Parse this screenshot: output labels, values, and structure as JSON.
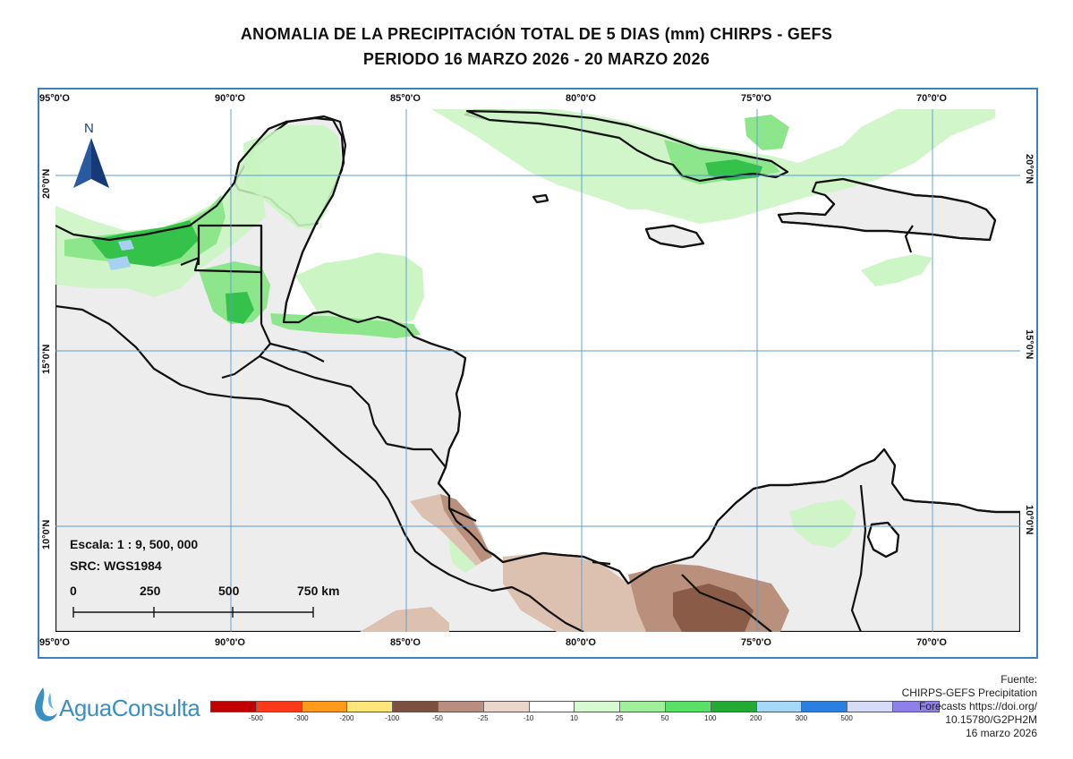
{
  "title_line1": "ANOMALIA DE LA PRECIPITACIÓN TOTAL DE 5 DIAS (mm) CHIRPS - GEFS",
  "title_line2": "PERIODO 16 MARZO 2026 - 20 MARZO 2026",
  "north_label": "N",
  "lon_labels": [
    "95°0'O",
    "90°0'O",
    "85°0'O",
    "80°0'O",
    "75°0'O",
    "70°0'O"
  ],
  "lat_labels": [
    "20°0'N",
    "15°0'N",
    "10°0'N"
  ],
  "scale": {
    "scale_text": "Escala: 1 : 9, 500, 000",
    "src_text": "SRC: WGS1984",
    "ticks": [
      "0",
      "250",
      "500",
      "750 km"
    ]
  },
  "logo_text": "AguaConsulta",
  "legend": {
    "colors": [
      "#c00000",
      "#ff3a1a",
      "#ff9a1a",
      "#ffe57a",
      "#7a5040",
      "#b78e80",
      "#ecd6cc",
      "#ffffff",
      "#d7fad2",
      "#9ff09a",
      "#5ae066",
      "#22aa33",
      "#a8d8f8",
      "#2a7fe0",
      "#d6dcf8",
      "#8e80e8"
    ],
    "labels": [
      "-500",
      "-300",
      "-200",
      "-100",
      "-50",
      "-25",
      "-10",
      "10",
      "25",
      "50",
      "100",
      "200",
      "300",
      "500"
    ]
  },
  "source": {
    "line1": "Fuente:",
    "line2": "CHIRPS-GEFS Precipitation",
    "line3": "Forecasts https://doi.org/",
    "line4": "10.15780/G2PH2M",
    "line5": "16 marzo 2026"
  },
  "colors": {
    "grid": "#5a9ad0",
    "land": "#ededed",
    "border": "#111111",
    "light_green": "#c8f5c0",
    "mid_green": "#8ee68c",
    "dark_green": "#35c24a",
    "blue": "#a8d0f0",
    "brown_light": "#dcc0b0",
    "brown_mid": "#b8907c",
    "brown_dark": "#8a5c48"
  }
}
